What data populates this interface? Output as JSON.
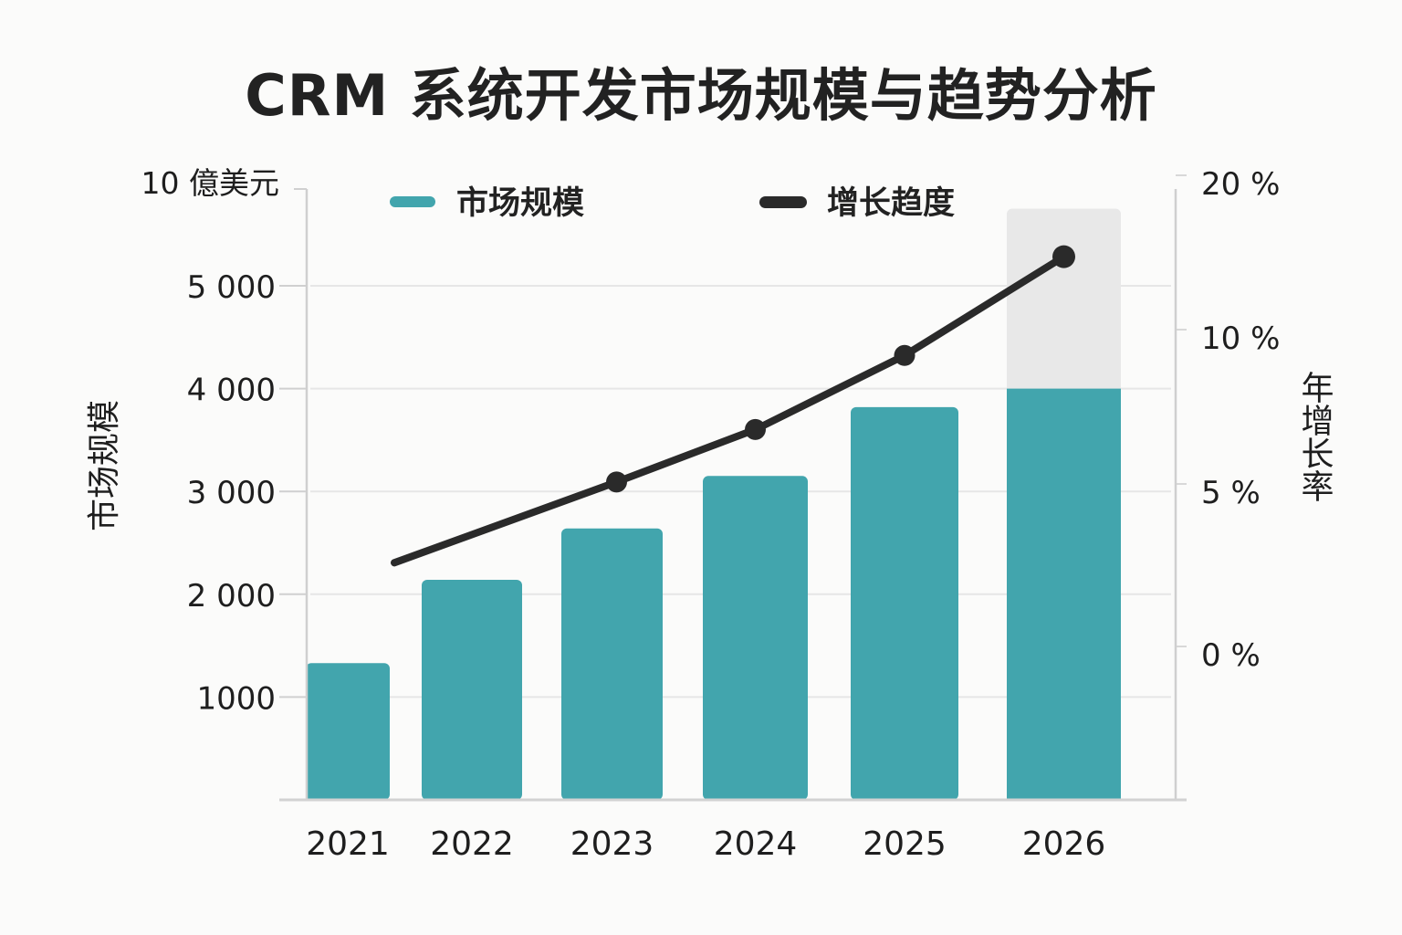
{
  "chart_data": {
    "type": "bar",
    "title": "CRM 系统开发市场规模与趋势分析",
    "categories": [
      "2021",
      "2022",
      "2023",
      "2024",
      "2025",
      "2026"
    ],
    "series": [
      {
        "name": "市场规模",
        "type": "bar",
        "axis": "left",
        "color": "#42A5AD",
        "values": [
          1330,
          2140,
          2640,
          3150,
          3820,
          4000
        ]
      },
      {
        "name": "增长趋度",
        "type": "line",
        "axis": "right",
        "color": "#2A2A2A",
        "start_value": 2.8,
        "values": [
          null,
          null,
          5.3,
          7.0,
          9.4,
          15.2
        ]
      }
    ],
    "forecast_band": {
      "category": "2026",
      "upper_value": 5750,
      "color": "#E8E8E8"
    },
    "left_axis": {
      "unit": "10 億美元",
      "title": "市场规模",
      "ticks": [
        1000,
        2000,
        3000,
        4000,
        5000
      ],
      "tick_labels": [
        "1000",
        "2 000",
        "3 000",
        "4 000",
        "5 000"
      ],
      "ylim": [
        0,
        5800
      ]
    },
    "right_axis": {
      "title": "年增长率",
      "ticks": [
        0,
        5,
        10,
        20
      ],
      "tick_labels": [
        "0 %",
        "5 %",
        "10 %",
        "20 %"
      ]
    },
    "legend": {
      "placement": "top",
      "entries": [
        "市场规模",
        "增长趋度"
      ]
    },
    "grid": true
  }
}
